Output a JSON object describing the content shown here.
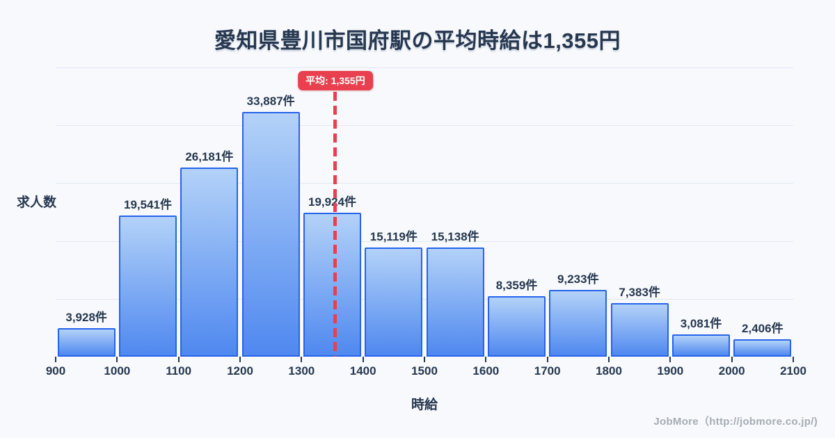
{
  "page": {
    "footer": "JobMore（http://jobmore.co.jp/)"
  },
  "chart_data": {
    "type": "bar",
    "title": "愛知県豊川市国府駅の平均時給は1,355円",
    "xlabel": "時給",
    "ylabel": "求人数",
    "unit": "件",
    "bin_edges": [
      900,
      1000,
      1100,
      1200,
      1300,
      1400,
      1500,
      1600,
      1700,
      1800,
      1900,
      2000,
      2100
    ],
    "x_ticks": [
      "900",
      "1000",
      "1100",
      "1200",
      "1300",
      "1400",
      "1500",
      "1600",
      "1700",
      "1800",
      "1900",
      "2000",
      "2100"
    ],
    "values": [
      3928,
      19541,
      26181,
      33887,
      19924,
      15119,
      15138,
      8359,
      9233,
      7383,
      3081,
      2406
    ],
    "value_labels": [
      "3,928件",
      "19,541件",
      "26,181件",
      "33,887件",
      "19,924件",
      "15,119件",
      "15,138件",
      "8,359件",
      "9,233件",
      "7,383件",
      "3,081件",
      "2,406件"
    ],
    "ylim": [
      0,
      40000
    ],
    "gridline_interval": 8000,
    "grid": true,
    "legend": "none",
    "average": {
      "value": 1355,
      "label": "平均: 1,355円"
    }
  },
  "colors": {
    "background": "#f7f9fc",
    "title_text": "#26374f",
    "axis_text": "#26374f",
    "gridline": "#e2e7f0",
    "bar_border": "#2563eb",
    "bar_gradient_top": "#b3d2f8",
    "bar_gradient_bottom": "#4f88ef",
    "average_line": "#e8404e",
    "average_badge_bg": "#e8404e",
    "average_badge_text": "#ffffff",
    "footer_text": "#a7acb4"
  }
}
